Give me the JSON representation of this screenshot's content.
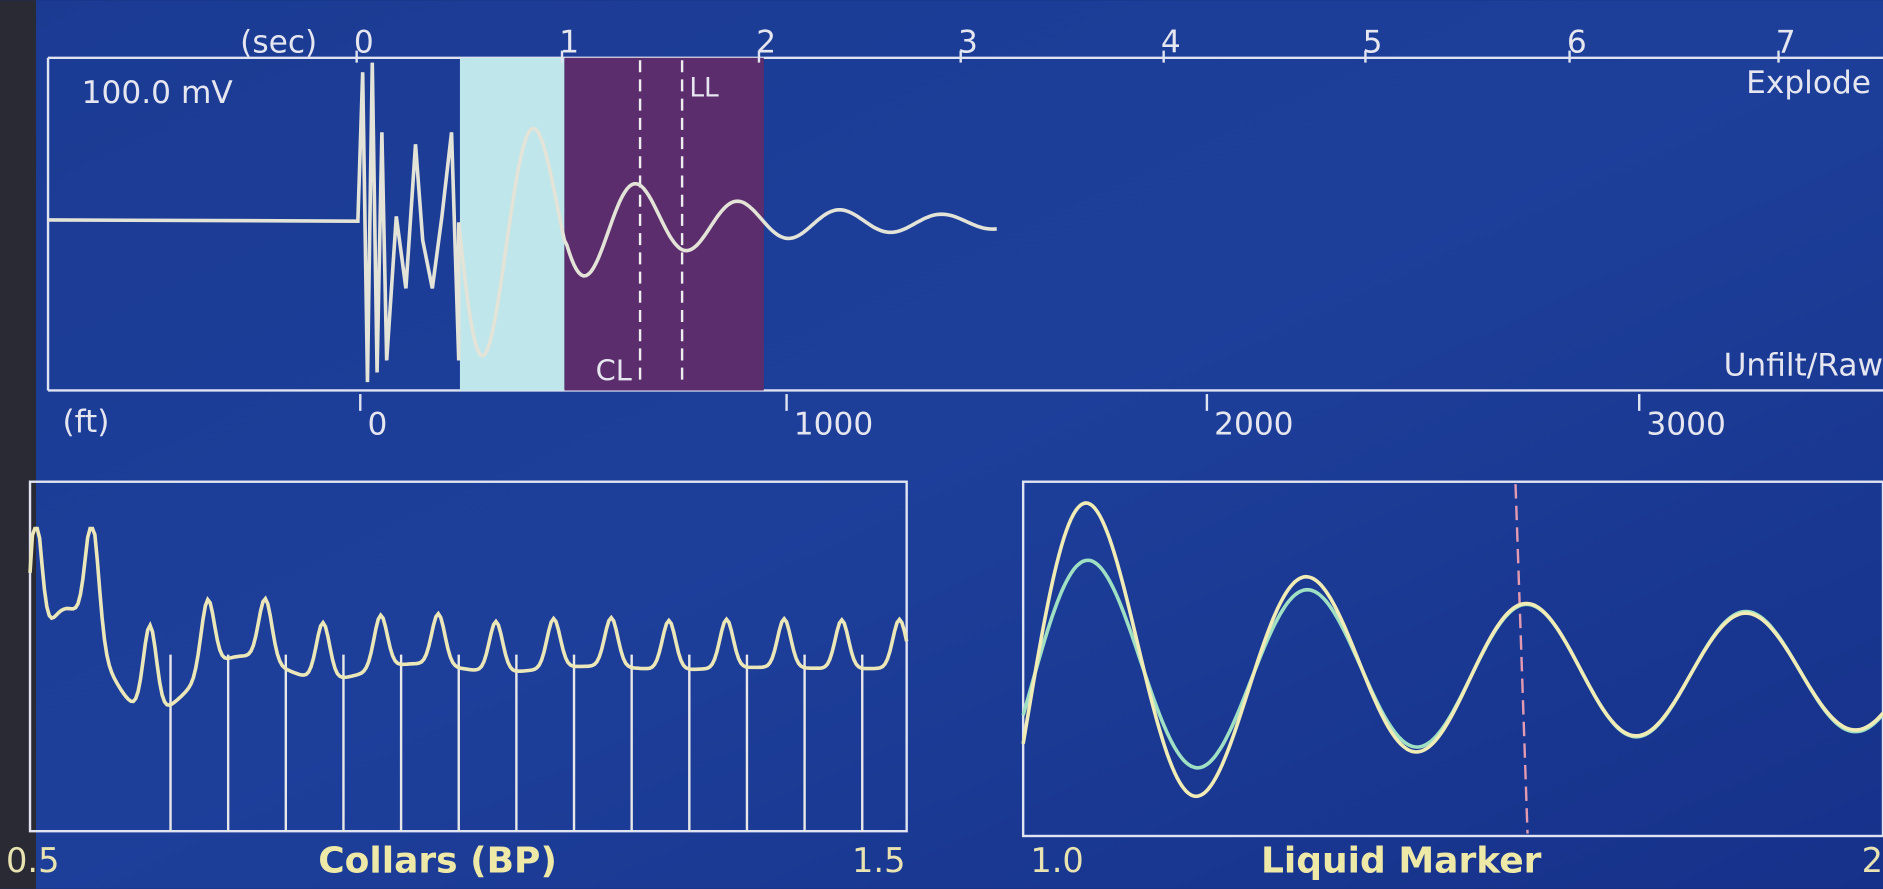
{
  "top_panel": {
    "time_unit": "(sec)",
    "time_ticks": [
      "0",
      "1",
      "2",
      "3",
      "4",
      "5",
      "6",
      "7"
    ],
    "scale": "100.0 mV",
    "mode": "Explode",
    "markers": [
      "LL",
      "CL"
    ],
    "filter": "Unfilt/Raw"
  },
  "depth_axis": {
    "unit": "(ft)",
    "ticks": [
      "0",
      "1000",
      "2000",
      "3000"
    ]
  },
  "collars_panel": {
    "title": "Collars (BP)",
    "range": [
      "0.5",
      "1.5"
    ]
  },
  "liquid_panel": {
    "title": "Liquid Marker",
    "range": [
      "1.0",
      "2"
    ]
  }
}
